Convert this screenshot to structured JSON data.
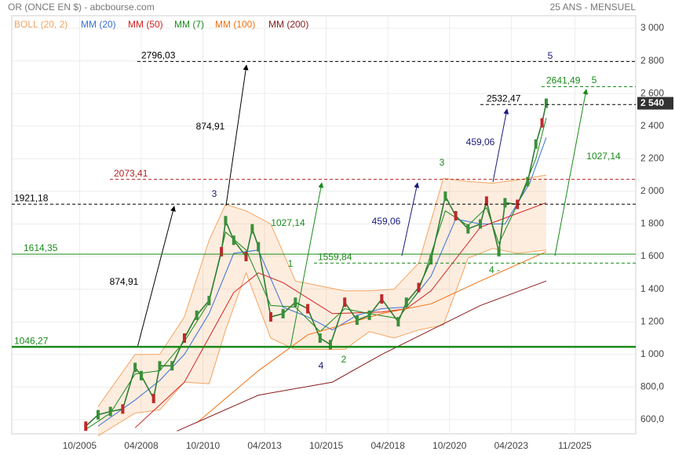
{
  "chart_data": {
    "type": "line",
    "title": "OR (ONCE EN $) - abcbourse.com",
    "subtitle": "25 ANS - MENSUEL",
    "xlim": [
      2003.0,
      2028.3
    ],
    "xticks": [
      {
        "value": 2005.75,
        "label": "10/2005"
      },
      {
        "value": 2008.25,
        "label": "04/2008"
      },
      {
        "value": 2010.75,
        "label": "10/2010"
      },
      {
        "value": 2013.25,
        "label": "04/2013"
      },
      {
        "value": 2015.75,
        "label": "10/2015"
      },
      {
        "value": 2018.25,
        "label": "04/2018"
      },
      {
        "value": 2020.75,
        "label": "10/2020"
      },
      {
        "value": 2023.25,
        "label": "04/2023"
      },
      {
        "value": 2025.83,
        "label": "11/2025"
      }
    ],
    "ylim": [
      513,
      3077
    ],
    "yticks": [
      {
        "value": 600,
        "label": "600,0"
      },
      {
        "value": 800,
        "label": "800,0"
      },
      {
        "value": 1000,
        "label": "1 000"
      },
      {
        "value": 1200,
        "label": "1 200"
      },
      {
        "value": 1400,
        "label": "1 400"
      },
      {
        "value": 1600,
        "label": "1 600"
      },
      {
        "value": 1800,
        "label": "1 800"
      },
      {
        "value": 2000,
        "label": "2 000"
      },
      {
        "value": 2200,
        "label": "2 200"
      },
      {
        "value": 2400,
        "label": "2 400"
      },
      {
        "value": 2600,
        "label": "2 600"
      },
      {
        "value": 2800,
        "label": "2 800"
      },
      {
        "value": 3000,
        "label": "3 000"
      }
    ],
    "grid": true,
    "price": {
      "color": "#2e7d32",
      "x": [
        2006.0,
        2006.5,
        2007.0,
        2007.5,
        2008.0,
        2008.25,
        2008.75,
        2009.0,
        2009.5,
        2010.0,
        2010.5,
        2011.0,
        2011.5,
        2011.67,
        2012.0,
        2012.5,
        2012.75,
        2013.0,
        2013.5,
        2014.0,
        2014.5,
        2015.0,
        2015.5,
        2015.92,
        2016.5,
        2017.0,
        2017.5,
        2018.0,
        2018.67,
        2019.0,
        2019.5,
        2020.0,
        2020.58,
        2021.0,
        2021.5,
        2022.0,
        2022.25,
        2022.75,
        2023.0,
        2023.5,
        2023.92,
        2024.25,
        2024.5,
        2024.67
      ],
      "values": [
        560,
        630,
        650,
        665,
        920,
        870,
        730,
        930,
        930,
        1100,
        1240,
        1330,
        1630,
        1820,
        1700,
        1600,
        1770,
        1660,
        1230,
        1250,
        1320,
        1280,
        1100,
        1060,
        1320,
        1210,
        1240,
        1340,
        1200,
        1320,
        1410,
        1580,
        1970,
        1850,
        1770,
        1800,
        1940,
        1630,
        1930,
        1920,
        2060,
        2290,
        2420,
        2540
      ]
    },
    "last_price": {
      "value": 2540,
      "label": "2 540"
    },
    "bollinger": {
      "name": "BOLL (20, 2)",
      "color": "#f4a460",
      "x": [
        2006.5,
        2008.0,
        2009.0,
        2010.0,
        2011.0,
        2011.67,
        2012.5,
        2013.5,
        2014.5,
        2015.5,
        2016.5,
        2017.5,
        2018.5,
        2019.5,
        2020.5,
        2021.5,
        2022.5,
        2023.5,
        2024.67
      ],
      "upper": [
        680,
        1000,
        1000,
        1230,
        1700,
        1920,
        1880,
        1800,
        1450,
        1420,
        1390,
        1390,
        1400,
        1560,
        2080,
        2060,
        2050,
        2070,
        2100
      ],
      "lower": [
        500,
        640,
        660,
        830,
        820,
        1150,
        1500,
        1100,
        1030,
        1030,
        1030,
        1140,
        1100,
        1150,
        1180,
        1590,
        1650,
        1620,
        1640
      ]
    },
    "series": [
      {
        "name": "MM (20)",
        "color": "#3a6fd8",
        "x": [
          2006.5,
          2008.0,
          2009.0,
          2010.0,
          2011.0,
          2012.0,
          2013.0,
          2014.0,
          2015.0,
          2016.0,
          2017.0,
          2018.0,
          2019.0,
          2020.0,
          2021.0,
          2022.0,
          2023.0,
          2024.0,
          2024.67
        ],
        "values": [
          560,
          720,
          840,
          1000,
          1250,
          1620,
          1640,
          1290,
          1230,
          1150,
          1240,
          1280,
          1290,
          1480,
          1830,
          1800,
          1800,
          2050,
          2330
        ]
      },
      {
        "name": "MM (50)",
        "color": "#d42020",
        "x": [
          2008.0,
          2010.0,
          2012.0,
          2013.0,
          2014.0,
          2016.0,
          2018.0,
          2019.0,
          2020.0,
          2022.0,
          2024.67
        ],
        "values": [
          550,
          830,
          1380,
          1500,
          1440,
          1250,
          1260,
          1280,
          1390,
          1780,
          1930
        ]
      },
      {
        "name": "MM (7)",
        "color": "#1a8a1a",
        "x": [
          2006.0,
          2007.0,
          2008.0,
          2009.0,
          2010.0,
          2011.0,
          2011.67,
          2012.5,
          2013.5,
          2014.5,
          2015.5,
          2016.5,
          2017.5,
          2018.67,
          2019.5,
          2020.58,
          2021.5,
          2022.25,
          2022.75,
          2023.5,
          2024.25,
          2024.67
        ],
        "values": [
          540,
          640,
          880,
          900,
          1080,
          1320,
          1750,
          1640,
          1300,
          1290,
          1140,
          1280,
          1250,
          1220,
          1390,
          1880,
          1790,
          1900,
          1680,
          1920,
          2200,
          2450
        ]
      },
      {
        "name": "MM (100)",
        "color": "#f07010",
        "x": [
          2010.5,
          2013.0,
          2015.0,
          2018.0,
          2020.0,
          2022.0,
          2024.67
        ],
        "values": [
          580,
          900,
          1120,
          1250,
          1310,
          1450,
          1630
        ]
      },
      {
        "name": "MM (200)",
        "color": "#8b1a1a",
        "x": [
          2009.7,
          2013.0,
          2016.0,
          2018.0,
          2020.0,
          2022.0,
          2024.67
        ],
        "values": [
          530,
          750,
          830,
          1000,
          1150,
          1300,
          1450
        ]
      }
    ],
    "levels": [
      {
        "value": 2796.03,
        "label": "2796,03",
        "color": "#000000",
        "style": "dashed"
      },
      {
        "value": 2641.49,
        "label": "2641,49",
        "color": "#1a8a1a",
        "style": "dashed"
      },
      {
        "value": 2532.47,
        "label": "2532,47",
        "color": "#000000",
        "style": "dashed"
      },
      {
        "value": 2073.41,
        "label": "2073,41",
        "color": "#b22222",
        "style": "dashed"
      },
      {
        "value": 1921.18,
        "label": "1921,18",
        "color": "#000000",
        "style": "dashed"
      },
      {
        "value": 1614.35,
        "label": "1614,35",
        "color": "#1a8a1a",
        "style": "solid"
      },
      {
        "value": 1559.84,
        "label": "1559,84",
        "color": "#1a8a1a",
        "style": "dashed"
      },
      {
        "value": 1046.27,
        "label": "1046,27",
        "color": "#1a8a1a",
        "style": "thick"
      }
    ],
    "annotations": [
      {
        "text": "5",
        "color": "#1a1a7a"
      },
      {
        "text": "5",
        "color": "#1a8a1a"
      },
      {
        "text": "874,91",
        "color": "#000000"
      },
      {
        "text": "874,91",
        "color": "#000000"
      },
      {
        "text": "3",
        "color": "#1a1a7a"
      },
      {
        "text": "1027,14",
        "color": "#1a8a1a"
      },
      {
        "text": "1027,14",
        "color": "#1a8a1a"
      },
      {
        "text": "459,06",
        "color": "#1a1a7a"
      },
      {
        "text": "459,06",
        "color": "#1a1a7a"
      },
      {
        "text": "3",
        "color": "#1a8a1a"
      },
      {
        "text": "1",
        "color": "#1a8a1a"
      },
      {
        "text": "4 -",
        "color": "#1a8a1a"
      },
      {
        "text": "4",
        "color": "#1a1a7a"
      },
      {
        "text": "2",
        "color": "#1a8a1a"
      }
    ]
  }
}
